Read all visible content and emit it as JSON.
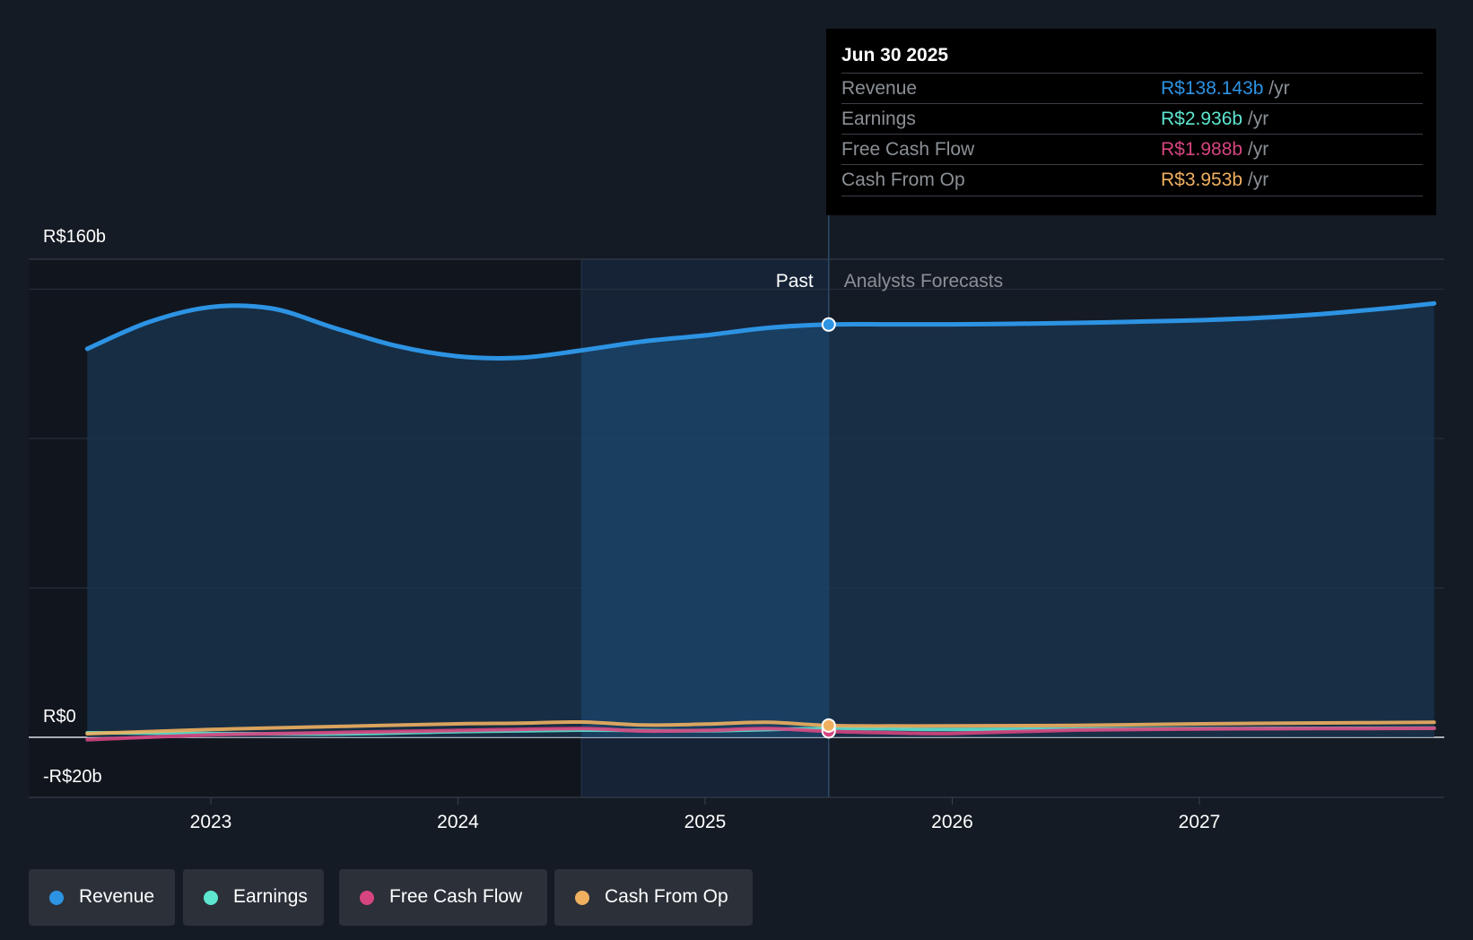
{
  "chart_data": {
    "type": "area",
    "title": "",
    "currency_prefix": "R$",
    "y_tick_labels": [
      "R$160b",
      "R$0",
      "-R$20b"
    ],
    "ylim": [
      -20,
      160
    ],
    "x_ticks": [
      2023,
      2024,
      2025,
      2026,
      2027
    ],
    "x_tick_labels": [
      "2023",
      "2024",
      "2025",
      "2026",
      "2027"
    ],
    "past_label": "Past",
    "forecast_label": "Analysts Forecasts",
    "past_end": 2025.5,
    "highlight_start": 2024.5,
    "series": [
      {
        "name": "Revenue",
        "color": "#2d93e3",
        "points": [
          [
            2022.5,
            130
          ],
          [
            2022.75,
            139
          ],
          [
            2023.0,
            144
          ],
          [
            2023.25,
            143.5
          ],
          [
            2023.5,
            137
          ],
          [
            2023.75,
            131
          ],
          [
            2024.0,
            127.5
          ],
          [
            2024.25,
            127
          ],
          [
            2024.5,
            129.5
          ],
          [
            2024.75,
            132.5
          ],
          [
            2025.0,
            134.5
          ],
          [
            2025.25,
            137
          ],
          [
            2025.5,
            138.143
          ],
          [
            2025.75,
            138.2
          ],
          [
            2026.0,
            138.2
          ],
          [
            2026.25,
            138.4
          ],
          [
            2026.5,
            138.7
          ],
          [
            2026.75,
            139.1
          ],
          [
            2027.0,
            139.6
          ],
          [
            2027.25,
            140.4
          ],
          [
            2027.5,
            141.7
          ],
          [
            2027.75,
            143.5
          ],
          [
            2027.95,
            145.2
          ]
        ]
      },
      {
        "name": "Earnings",
        "color": "#5ee6d0",
        "points": [
          [
            2022.5,
            1.5
          ],
          [
            2023.0,
            1.3
          ],
          [
            2023.5,
            1.1
          ],
          [
            2024.0,
            1.9
          ],
          [
            2024.5,
            2.4
          ],
          [
            2025.0,
            2.2
          ],
          [
            2025.5,
            2.936
          ],
          [
            2026.0,
            2.6
          ],
          [
            2026.5,
            2.8
          ],
          [
            2027.0,
            2.9
          ],
          [
            2027.5,
            3.0
          ],
          [
            2027.95,
            3.1
          ]
        ]
      },
      {
        "name": "Free Cash Flow",
        "color": "#d6457f",
        "points": [
          [
            2022.5,
            -0.8
          ],
          [
            2023.0,
            0.8
          ],
          [
            2023.5,
            1.6
          ],
          [
            2024.0,
            2.3
          ],
          [
            2024.5,
            2.9
          ],
          [
            2024.75,
            2.1
          ],
          [
            2025.0,
            2.3
          ],
          [
            2025.25,
            2.9
          ],
          [
            2025.5,
            1.988
          ],
          [
            2025.75,
            1.5
          ],
          [
            2026.0,
            1.3
          ],
          [
            2026.5,
            2.4
          ],
          [
            2027.0,
            2.8
          ],
          [
            2027.5,
            2.9
          ],
          [
            2027.95,
            3.0
          ]
        ]
      },
      {
        "name": "Cash From Op",
        "color": "#f0b060",
        "points": [
          [
            2022.5,
            1.2
          ],
          [
            2023.0,
            2.6
          ],
          [
            2023.5,
            3.6
          ],
          [
            2024.0,
            4.5
          ],
          [
            2024.25,
            4.7
          ],
          [
            2024.5,
            5.1
          ],
          [
            2024.75,
            4.1
          ],
          [
            2025.0,
            4.4
          ],
          [
            2025.25,
            5.0
          ],
          [
            2025.5,
            3.953
          ],
          [
            2025.75,
            3.8
          ],
          [
            2026.0,
            3.8
          ],
          [
            2026.5,
            4.0
          ],
          [
            2027.0,
            4.5
          ],
          [
            2027.5,
            4.8
          ],
          [
            2027.95,
            5.0
          ]
        ]
      }
    ],
    "tooltip": {
      "date": "Jun 30 2025",
      "rows": [
        {
          "label": "Revenue",
          "value": "R$138.143b",
          "unit": "/yr",
          "color": "#2d93e3"
        },
        {
          "label": "Earnings",
          "value": "R$2.936b",
          "unit": "/yr",
          "color": "#5ee6d0"
        },
        {
          "label": "Free Cash Flow",
          "value": "R$1.988b",
          "unit": "/yr",
          "color": "#d6457f"
        },
        {
          "label": "Cash From Op",
          "value": "R$3.953b",
          "unit": "/yr",
          "color": "#f0b060"
        }
      ]
    }
  },
  "legend": [
    {
      "label": "Revenue",
      "color": "#2d93e3"
    },
    {
      "label": "Earnings",
      "color": "#5ee6d0"
    },
    {
      "label": "Free Cash Flow",
      "color": "#d6457f"
    },
    {
      "label": "Cash From Op",
      "color": "#f0b060"
    }
  ]
}
